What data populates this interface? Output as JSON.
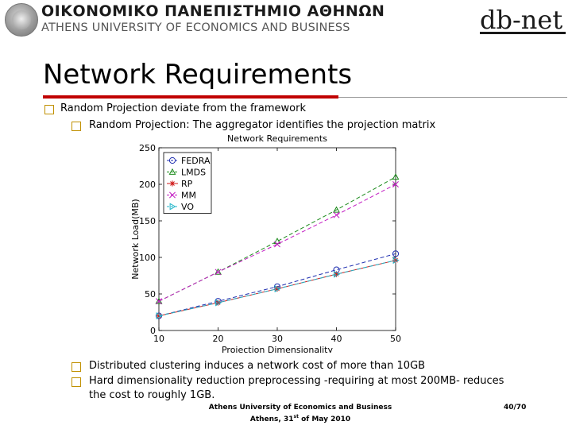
{
  "header": {
    "university_greek": "ΟΙΚΟΝΟΜΙΚΟ ΠΑΝΕΠΙΣΤΗΜΙΟ ΑΘΗΝΩΝ",
    "university_english": "ATHENS UNIVERSITY OF ECONOMICS AND BUSINESS",
    "lab_logo_text": "db-net",
    "colors": {
      "rule_red": "#c00000",
      "bullet": "#c09000"
    }
  },
  "slide": {
    "title": "Network Requirements",
    "bullets_top": [
      {
        "level": 1,
        "text": "Random Projection deviate from the framework"
      },
      {
        "level": 2,
        "text": "Random Projection: The aggregator identifies the projection matrix"
      }
    ],
    "bullets_bottom": [
      {
        "level": 2,
        "lines": [
          "Distributed clustering induces a network cost of more than 10GB"
        ]
      },
      {
        "level": 2,
        "lines": [
          "Hard dimensionality reduction preprocessing -requiring at most 200MB- reduces",
          "the cost to roughly 1GB."
        ]
      }
    ]
  },
  "footer": {
    "line1": "Athens University of Economics and Business",
    "line2_prefix": "Athens, 31",
    "line2_sup": "st",
    "line2_suffix": " of May 2010",
    "page": "40/70"
  },
  "chart_data": {
    "type": "line",
    "title": "Network Requirements",
    "xlabel": "Projection Dimensionality",
    "ylabel": "Network Load(MB)",
    "xlim": [
      10,
      50
    ],
    "ylim": [
      0,
      250
    ],
    "x_ticks": [
      10,
      20,
      30,
      40,
      50
    ],
    "y_ticks": [
      0,
      50,
      100,
      150,
      200,
      250
    ],
    "grid": false,
    "legend_position": "top-left",
    "x": [
      10,
      20,
      30,
      40,
      50
    ],
    "series": [
      {
        "name": "FEDRA",
        "marker": "circle",
        "color": "#1f2fb0",
        "dash": "5,3",
        "values": [
          20,
          40,
          60,
          83,
          105
        ]
      },
      {
        "name": "LMDS",
        "marker": "triangle-up",
        "color": "#1a8a1a",
        "dash": "5,3",
        "values": [
          40,
          80,
          122,
          165,
          210
        ]
      },
      {
        "name": "RP",
        "marker": "star",
        "color": "#d01818",
        "dash": "",
        "values": [
          20,
          38,
          57,
          77,
          96
        ]
      },
      {
        "name": "MM",
        "marker": "x",
        "color": "#c21bc2",
        "dash": "5,3",
        "values": [
          40,
          80,
          118,
          158,
          200
        ]
      },
      {
        "name": "VO",
        "marker": "triangle-right",
        "color": "#1fb4c8",
        "dash": "5,3",
        "values": [
          20,
          38,
          57,
          77,
          96
        ]
      }
    ]
  }
}
